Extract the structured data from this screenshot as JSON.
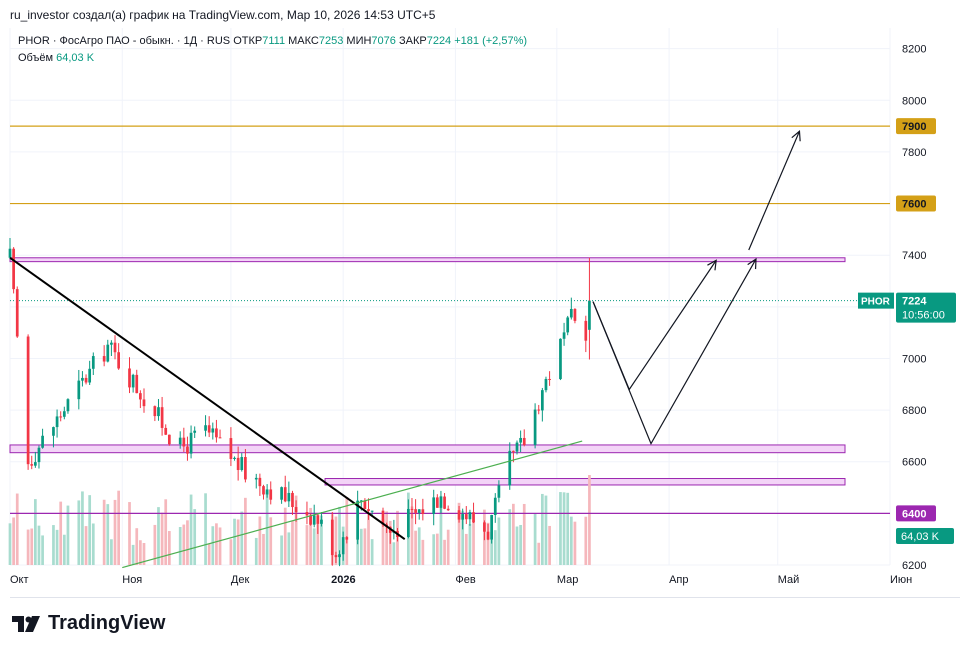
{
  "header": {
    "attribution": "ru_investor создал(а) график на TradingView.com, Мар 10, 2026 14:53 UTC+5"
  },
  "legend": {
    "symbol_line": "PHOR · ФосАгро ПАО - обыкн. · 1Д · RUS",
    "open_label": "ОТКР",
    "open_value": "7111",
    "high_label": "МАКС",
    "high_value": "7253",
    "low_label": "МИН",
    "low_value": "7076",
    "close_label": "ЗАКР",
    "close_value": "7224",
    "change": "+181 (+2,57%)",
    "volume_label": "Объём",
    "volume_value": "64,03 K"
  },
  "brand": {
    "name": "TradingView"
  },
  "price_tag": {
    "symbol": "PHOR",
    "price": "7224",
    "countdown": "10:56:00"
  },
  "volume_tag": "64,03 K",
  "colors": {
    "up": "#089981",
    "down": "#f23645",
    "vol_up": "#a8dccf",
    "vol_down": "#f5b7bc",
    "gold": "#d4a017",
    "purple": "#9c27b0",
    "zone_fill": "#f3d4f7",
    "trend_green": "#4caf50",
    "black": "#000000"
  },
  "chart_data": {
    "type": "candlestick",
    "title": "",
    "xlabel": "",
    "ylabel": "",
    "ylim": [
      6200,
      8280
    ],
    "y_ticks": [
      6200,
      6400,
      6600,
      6800,
      7000,
      7200,
      7400,
      7600,
      7800,
      8000,
      8200
    ],
    "x_ticks": [
      {
        "label": "Окт",
        "date": "2025-10-01"
      },
      {
        "label": "Ноя",
        "date": "2025-11-01"
      },
      {
        "label": "Дек",
        "date": "2025-12-01"
      },
      {
        "label": "2026",
        "date": "2026-01-01"
      },
      {
        "label": "Фев",
        "date": "2026-02-01"
      },
      {
        "label": "Мар",
        "date": "2026-03-01"
      },
      {
        "label": "Апр",
        "date": "2026-04-01"
      },
      {
        "label": "Май",
        "date": "2026-05-01"
      },
      {
        "label": "Июн",
        "date": "2026-06-01"
      }
    ],
    "x_range": [
      "2025-10-01",
      "2026-06-01"
    ],
    "last_date": "2026-03-10",
    "key_points": [
      {
        "date": "2025-10-01",
        "price": 7390
      },
      {
        "date": "2025-10-06",
        "price": 6600
      },
      {
        "date": "2025-10-28",
        "price": 7050
      },
      {
        "date": "2025-11-17",
        "price": 6650
      },
      {
        "date": "2025-11-24",
        "price": 6720
      },
      {
        "date": "2025-12-05",
        "price": 6560
      },
      {
        "date": "2025-12-25",
        "price": 6380
      },
      {
        "date": "2025-12-30",
        "price": 6250
      },
      {
        "date": "2026-01-06",
        "price": 6460
      },
      {
        "date": "2026-01-14",
        "price": 6330
      },
      {
        "date": "2026-01-28",
        "price": 6470
      },
      {
        "date": "2026-02-10",
        "price": 6330
      },
      {
        "date": "2026-02-16",
        "price": 6600
      },
      {
        "date": "2026-02-20",
        "price": 6680
      },
      {
        "date": "2026-02-25",
        "price": 6880
      },
      {
        "date": "2026-03-02",
        "price": 7050
      },
      {
        "date": "2026-03-05",
        "price": 7150
      },
      {
        "date": "2026-03-09",
        "price": 7110
      },
      {
        "date": "2026-03-10",
        "price": 7224
      }
    ],
    "last_candle": {
      "open": 7111,
      "high": 7253,
      "low": 7076,
      "close": 7224
    },
    "volume_last": "64,03 K",
    "horizontal_levels": [
      {
        "price": 7900,
        "label": "7900",
        "color": "gold"
      },
      {
        "price": 7600,
        "label": "7600",
        "color": "gold"
      },
      {
        "price": 6400,
        "label": "6400",
        "color": "purple"
      }
    ],
    "zones": [
      {
        "from": "2025-10-01",
        "to": "2026-06-01",
        "low": 7375,
        "high": 7390
      },
      {
        "from": "2025-10-01",
        "to": "2026-06-01",
        "low": 6635,
        "high": 6665
      },
      {
        "from": "2025-12-27",
        "to": "2026-06-01",
        "low": 6510,
        "high": 6535
      }
    ],
    "trendlines": [
      {
        "style": "black",
        "from": {
          "date": "2025-10-01",
          "price": 7390
        },
        "to": {
          "date": "2026-01-18",
          "price": 6300
        }
      },
      {
        "style": "green",
        "from": {
          "date": "2025-11-01",
          "price": 6190
        },
        "to": {
          "date": "2026-03-08",
          "price": 6680
        }
      }
    ],
    "projection_paths": [
      [
        {
          "date": "2026-03-11",
          "price": 7220
        },
        {
          "date": "2026-03-21",
          "price": 6880
        },
        {
          "date": "2026-04-14",
          "price": 7380
        }
      ],
      [
        {
          "date": "2026-03-11",
          "price": 7220
        },
        {
          "date": "2026-03-27",
          "price": 6670
        },
        {
          "date": "2026-04-25",
          "price": 7385
        }
      ],
      [
        {
          "date": "2026-04-23",
          "price": 7420
        },
        {
          "date": "2026-05-07",
          "price": 7880
        }
      ]
    ]
  }
}
